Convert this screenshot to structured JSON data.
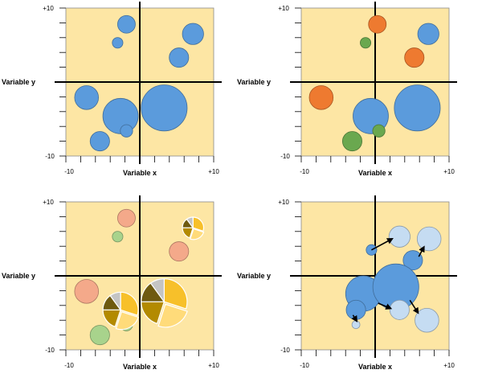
{
  "chart_data": [
    {
      "type": "scatter",
      "variant": "bubble",
      "xlabel": "Variable x",
      "ylabel": "Variable y",
      "xlim": [
        -10,
        10
      ],
      "ylim": [
        -10,
        10
      ],
      "tick_labels": {
        "xmin": "-10",
        "xmax": "+10",
        "ymin": "-10",
        "ymax": "+10"
      },
      "colors": {
        "background": "#fde6a4",
        "blue": "#5b9bdc"
      },
      "points": [
        {
          "x": -1.8,
          "y": 7.8,
          "size": 1.0,
          "color": "blue"
        },
        {
          "x": -3.0,
          "y": 5.3,
          "size": 0.6,
          "color": "blue"
        },
        {
          "x": 7.2,
          "y": 6.5,
          "size": 1.2,
          "color": "blue"
        },
        {
          "x": 5.3,
          "y": 3.3,
          "size": 1.1,
          "color": "blue"
        },
        {
          "x": -7.2,
          "y": -2.1,
          "size": 1.35,
          "color": "blue"
        },
        {
          "x": -2.6,
          "y": -4.6,
          "size": 2.0,
          "color": "blue"
        },
        {
          "x": 3.3,
          "y": -3.5,
          "size": 2.6,
          "color": "blue"
        },
        {
          "x": -1.8,
          "y": -6.6,
          "size": 0.7,
          "color": "blue"
        },
        {
          "x": -5.4,
          "y": -8.0,
          "size": 1.1,
          "color": "blue"
        }
      ]
    },
    {
      "type": "scatter",
      "variant": "bubble-colored",
      "xlabel": "Variable x",
      "ylabel": "Variable y",
      "xlim": [
        -10,
        10
      ],
      "ylim": [
        -10,
        10
      ],
      "tick_labels": {
        "xmin": "-10",
        "xmax": "+10",
        "ymin": "-10",
        "ymax": "+10"
      },
      "colors": {
        "background": "#fde6a4",
        "blue": "#5b9bdc",
        "orange": "#ee7a30",
        "green": "#6aa84f"
      },
      "points": [
        {
          "x": 0.3,
          "y": 7.8,
          "size": 1.0,
          "color": "orange"
        },
        {
          "x": -1.3,
          "y": 5.3,
          "size": 0.6,
          "color": "green"
        },
        {
          "x": 7.2,
          "y": 6.5,
          "size": 1.2,
          "color": "blue"
        },
        {
          "x": 5.3,
          "y": 3.3,
          "size": 1.1,
          "color": "orange"
        },
        {
          "x": -7.3,
          "y": -2.1,
          "size": 1.35,
          "color": "orange"
        },
        {
          "x": -0.6,
          "y": -4.6,
          "size": 2.0,
          "color": "blue"
        },
        {
          "x": 5.7,
          "y": -3.5,
          "size": 2.6,
          "color": "blue"
        },
        {
          "x": 0.5,
          "y": -6.6,
          "size": 0.7,
          "color": "green"
        },
        {
          "x": -3.1,
          "y": -8.0,
          "size": 1.1,
          "color": "green"
        }
      ]
    },
    {
      "type": "scatter",
      "variant": "bubble-pie",
      "xlabel": "Variable x",
      "ylabel": "Variable y",
      "xlim": [
        -10,
        10
      ],
      "ylim": [
        -10,
        10
      ],
      "tick_labels": {
        "xmin": "-10",
        "xmax": "+10",
        "ymin": "-10",
        "ymax": "+10"
      },
      "colors": {
        "background": "#fde6a4",
        "salmon": "#f4a98a",
        "lightgreen": "#a8d38c",
        "pie": [
          "#f7c02a",
          "#ffdb7a",
          "#b38a00",
          "#6e5a10",
          "#c4c4c4"
        ]
      },
      "points": [
        {
          "x": -1.8,
          "y": 7.8,
          "size": 1.0,
          "color": "salmon"
        },
        {
          "x": -3.0,
          "y": 5.3,
          "size": 0.6,
          "color": "lightgreen"
        },
        {
          "x": 5.3,
          "y": 3.3,
          "size": 1.1,
          "color": "salmon"
        },
        {
          "x": -7.2,
          "y": -2.1,
          "size": 1.35,
          "color": "salmon"
        },
        {
          "x": -1.8,
          "y": -6.6,
          "size": 0.7,
          "color": "lightgreen"
        },
        {
          "x": -5.4,
          "y": -8.0,
          "size": 1.1,
          "color": "lightgreen"
        }
      ],
      "pies": [
        {
          "x": 7.2,
          "y": 6.5,
          "size": 1.2,
          "slices": [
            30,
            25,
            20,
            15,
            10
          ],
          "explode": true
        },
        {
          "x": -2.6,
          "y": -4.6,
          "size": 2.0,
          "slices": [
            30,
            25,
            20,
            15,
            10
          ],
          "explode": true
        },
        {
          "x": 3.3,
          "y": -3.5,
          "size": 2.6,
          "slices": [
            30,
            25,
            20,
            15,
            10
          ],
          "explode": true
        }
      ]
    },
    {
      "type": "scatter",
      "variant": "bubble-movement",
      "xlabel": "Variable x",
      "ylabel": "Variable y",
      "xlim": [
        -10,
        10
      ],
      "ylim": [
        -10,
        10
      ],
      "tick_labels": {
        "xmin": "-10",
        "xmax": "+10",
        "ymin": "-10",
        "ymax": "+10"
      },
      "colors": {
        "background": "#fde6a4",
        "from": "#5b9bdc",
        "to": "#c5dcf2"
      },
      "points": [
        {
          "x": -0.5,
          "y": 3.5,
          "size": 0.6,
          "color": "from"
        },
        {
          "x": 5.1,
          "y": 2.1,
          "size": 1.1,
          "color": "from"
        },
        {
          "x": -1.6,
          "y": -2.4,
          "size": 2.0,
          "color": "from"
        },
        {
          "x": 2.8,
          "y": -1.5,
          "size": 2.6,
          "color": "from"
        },
        {
          "x": -2.6,
          "y": -4.6,
          "size": 1.1,
          "color": "from"
        },
        {
          "x": 3.3,
          "y": 5.3,
          "size": 1.2,
          "color": "to"
        },
        {
          "x": 7.3,
          "y": 5.0,
          "size": 1.35,
          "color": "to"
        },
        {
          "x": 3.3,
          "y": -4.6,
          "size": 1.1,
          "color": "to"
        },
        {
          "x": 7.0,
          "y": -6.0,
          "size": 1.35,
          "color": "to"
        },
        {
          "x": -2.6,
          "y": -6.6,
          "size": 0.45,
          "color": "to"
        }
      ],
      "arrows": [
        {
          "from": [
            -0.5,
            3.5
          ],
          "to": [
            2.3,
            5.0
          ]
        },
        {
          "from": [
            5.9,
            2.6
          ],
          "to": [
            6.6,
            3.9
          ]
        },
        {
          "from": [
            0.4,
            -3.7
          ],
          "to": [
            2.1,
            -4.4
          ]
        },
        {
          "from": [
            4.7,
            -3.3
          ],
          "to": [
            5.8,
            -5.0
          ]
        },
        {
          "from": [
            -3.0,
            -5.3
          ],
          "to": [
            -2.5,
            -6.1
          ]
        }
      ]
    }
  ]
}
